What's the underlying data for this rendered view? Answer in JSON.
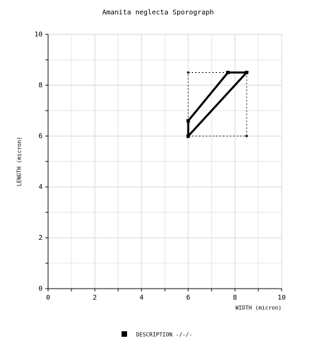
{
  "chart_data": {
    "type": "line",
    "title": "Amanita neglecta Sporograph",
    "x_label": "WIDTH (micron)",
    "y_label": "LENGTH (micron)",
    "series": [
      {
        "name": "DESCRIPTION -/-/-",
        "color": "#000000",
        "x": [
          6,
          6,
          7.7,
          8.5
        ],
        "values": [
          6,
          6.6,
          8.5,
          8.5
        ]
      }
    ],
    "box": {
      "x": [
        6,
        8.5
      ],
      "y": [
        6,
        8.5
      ]
    },
    "xlim": [
      0,
      10
    ],
    "ylim": [
      0,
      10
    ],
    "xticks": [
      0,
      2,
      4,
      6,
      8,
      10
    ],
    "yticks": [
      0,
      2,
      4,
      6,
      8,
      10
    ],
    "xminorticks": [
      1,
      3,
      5,
      7,
      9
    ],
    "yminorticks": [
      1,
      3,
      5,
      7,
      9
    ],
    "grid": true
  }
}
